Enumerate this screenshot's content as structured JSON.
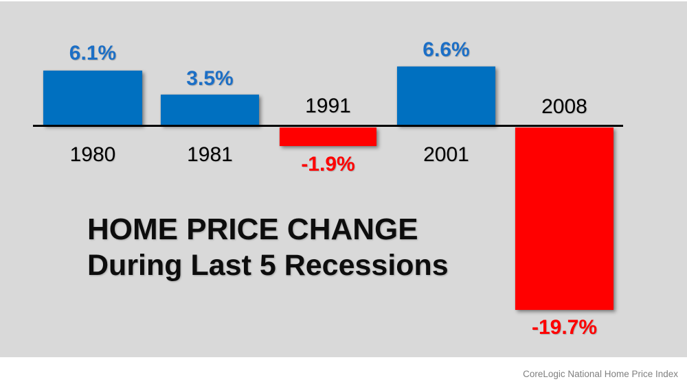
{
  "slide": {
    "title_line1": "HOME PRICE CHANGE",
    "title_line2": "During Last 5 Recessions",
    "source": "CoreLogic National Home Price Index"
  },
  "colors": {
    "page_background": "#FFFFFF",
    "panel_background": "#D9D9D9",
    "positive_bar": "#0070C0",
    "negative_bar": "#FF0000",
    "positive_value_label": "#1C6FC6",
    "negative_value_label": "#FF0000",
    "year_label": "#000000",
    "axis_line": "#000000",
    "source_text": "#7F7F7F"
  },
  "chart_data": {
    "type": "bar",
    "title": "HOME PRICE CHANGE",
    "subtitle": "During Last 5 Recessions",
    "categories": [
      "1980",
      "1981",
      "1991",
      "2001",
      "2008"
    ],
    "values": [
      6.1,
      3.5,
      -1.9,
      6.6,
      -19.7
    ],
    "value_labels": [
      "6.1%",
      "3.5%",
      "-1.9%",
      "6.6%",
      "-19.7%"
    ],
    "unit": "%",
    "baseline": 0,
    "ylim": [
      -19.7,
      6.6
    ],
    "grid": false,
    "legend": false,
    "bar_color_positive": "#0070C0",
    "bar_color_negative": "#FF0000",
    "xlabel": "",
    "ylabel": "",
    "source": "CoreLogic National Home Price Index"
  }
}
